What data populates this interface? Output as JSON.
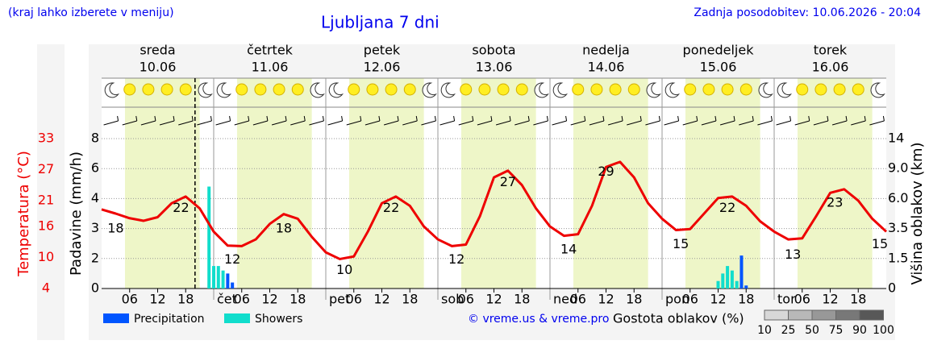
{
  "chart_data": {
    "type": "line",
    "subtitle": "(kraj lahko izberete v meniju)",
    "title": "Ljubljana 7 dni",
    "updated": "Zadnja posodobitev: 10.06.2026 - 20:04",
    "days": [
      {
        "name": "sreda",
        "date": "10.06",
        "color": "#000000"
      },
      {
        "name": "četrtek",
        "date": "11.06",
        "color": "#000000"
      },
      {
        "name": "petek",
        "date": "12.06",
        "color": "#000000"
      },
      {
        "name": "sobota",
        "date": "13.06",
        "color": "#dd0000"
      },
      {
        "name": "nedelja",
        "date": "14.06",
        "color": "#dd0000"
      },
      {
        "name": "ponedeljek",
        "date": "15.06",
        "color": "#000000"
      },
      {
        "name": "torek",
        "date": "16.06",
        "color": "#000000"
      }
    ],
    "x": [
      0,
      3,
      6,
      9,
      12,
      15,
      18,
      21,
      24,
      27,
      30,
      33,
      36,
      39,
      42,
      45,
      48,
      51,
      54,
      57,
      60,
      63,
      66,
      69,
      72,
      75,
      78,
      81,
      84,
      87,
      90,
      93,
      96,
      99,
      102,
      105,
      108,
      111,
      114,
      117,
      120,
      123,
      126,
      129,
      132,
      135,
      138,
      141,
      144,
      147,
      150,
      153,
      156,
      159,
      162,
      165,
      168
    ],
    "xlim": [
      0,
      168
    ],
    "xticks": [
      {
        "value": 6,
        "label": "06"
      },
      {
        "value": 12,
        "label": "12"
      },
      {
        "value": 18,
        "label": "18"
      },
      {
        "value": 24,
        "label": "čet"
      },
      {
        "value": 30,
        "label": "06"
      },
      {
        "value": 36,
        "label": "12"
      },
      {
        "value": 42,
        "label": "18"
      },
      {
        "value": 48,
        "label": "pet"
      },
      {
        "value": 54,
        "label": "06"
      },
      {
        "value": 60,
        "label": "12"
      },
      {
        "value": 66,
        "label": "18"
      },
      {
        "value": 72,
        "label": "sob"
      },
      {
        "value": 78,
        "label": "06"
      },
      {
        "value": 84,
        "label": "12"
      },
      {
        "value": 90,
        "label": "18"
      },
      {
        "value": 96,
        "label": "ned"
      },
      {
        "value": 102,
        "label": "06"
      },
      {
        "value": 108,
        "label": "12"
      },
      {
        "value": 114,
        "label": "18"
      },
      {
        "value": 120,
        "label": "pon"
      },
      {
        "value": 126,
        "label": "06"
      },
      {
        "value": 132,
        "label": "12"
      },
      {
        "value": 138,
        "label": "18"
      },
      {
        "value": 144,
        "label": "tor"
      },
      {
        "value": 150,
        "label": "06"
      },
      {
        "value": 156,
        "label": "12"
      },
      {
        "value": 162,
        "label": "18"
      }
    ],
    "ylabel": "Temperatura (°C)",
    "ylim": [
      4,
      33
    ],
    "yticks": [
      4,
      10,
      16,
      21,
      27,
      33
    ],
    "series": [
      {
        "color": "#ee0000",
        "values": [
          19.3,
          18.5,
          17.6,
          17.1,
          17.8,
          20.5,
          21.8,
          19.5,
          15,
          12.3,
          12.2,
          13.5,
          16.5,
          18.4,
          17.5,
          14,
          11,
          9.7,
          10.2,
          15,
          20.5,
          21.8,
          20,
          16,
          13.5,
          12.2,
          12.5,
          18,
          25.5,
          26.8,
          24,
          19.5,
          16,
          14.2,
          14.5,
          20,
          27.5,
          28.5,
          25.5,
          20.5,
          17.5,
          15.3,
          15.5,
          18.5,
          21.5,
          21.8,
          20,
          17,
          15,
          13.5,
          13.7,
          18,
          22.5,
          23.2,
          21,
          17.5,
          15
        ]
      }
    ],
    "temp_labels": [
      {
        "x": 3,
        "value": 18
      },
      {
        "x": 17,
        "value": 22
      },
      {
        "x": 28,
        "value": 12
      },
      {
        "x": 39,
        "value": 18
      },
      {
        "x": 52,
        "value": 10
      },
      {
        "x": 62,
        "value": 22
      },
      {
        "x": 76,
        "value": 12
      },
      {
        "x": 87,
        "value": 27
      },
      {
        "x": 100,
        "value": 14
      },
      {
        "x": 108,
        "value": 29
      },
      {
        "x": 124,
        "value": 15
      },
      {
        "x": 134,
        "value": 22
      },
      {
        "x": 148,
        "value": 13
      },
      {
        "x": 157,
        "value": 23
      },
      {
        "x": 168,
        "value": 15
      }
    ],
    "precip_axis": {
      "label": "Padavine (mm/h)",
      "ticks": [
        0,
        2,
        3,
        4,
        6,
        8
      ]
    },
    "cloud_height_axis": {
      "label": "Višina oblakov (km)",
      "ticks": [
        0,
        1.5,
        3.5,
        {
          "value": 6,
          "label": "6.0"
        },
        {
          "value": 9,
          "label": "9.0"
        },
        14
      ]
    },
    "bars": [
      {
        "name": "Precipitation",
        "color": "#0055ff",
        "x": [
          27,
          28,
          137,
          138
        ],
        "values": [
          1.0,
          0.4,
          2.1,
          0.2
        ]
      },
      {
        "name": "Showers",
        "color": "#11ddcc",
        "x": [
          23,
          24,
          25,
          26,
          132,
          133,
          134,
          135,
          136
        ],
        "values": [
          4.8,
          1.5,
          1.5,
          1.2,
          0.5,
          1.0,
          1.5,
          1.2,
          0.5
        ]
      }
    ],
    "daylight": [
      5,
      21
    ],
    "now": 20,
    "credit": "© vreme.us & vreme.pro",
    "density": {
      "label": "Gostota oblakov (%)",
      "levels": [
        10,
        25,
        50,
        75,
        90,
        100
      ],
      "colors": [
        "#d8d8d8",
        "#b8b8b8",
        "#989898",
        "#787878",
        "#585858"
      ]
    }
  }
}
